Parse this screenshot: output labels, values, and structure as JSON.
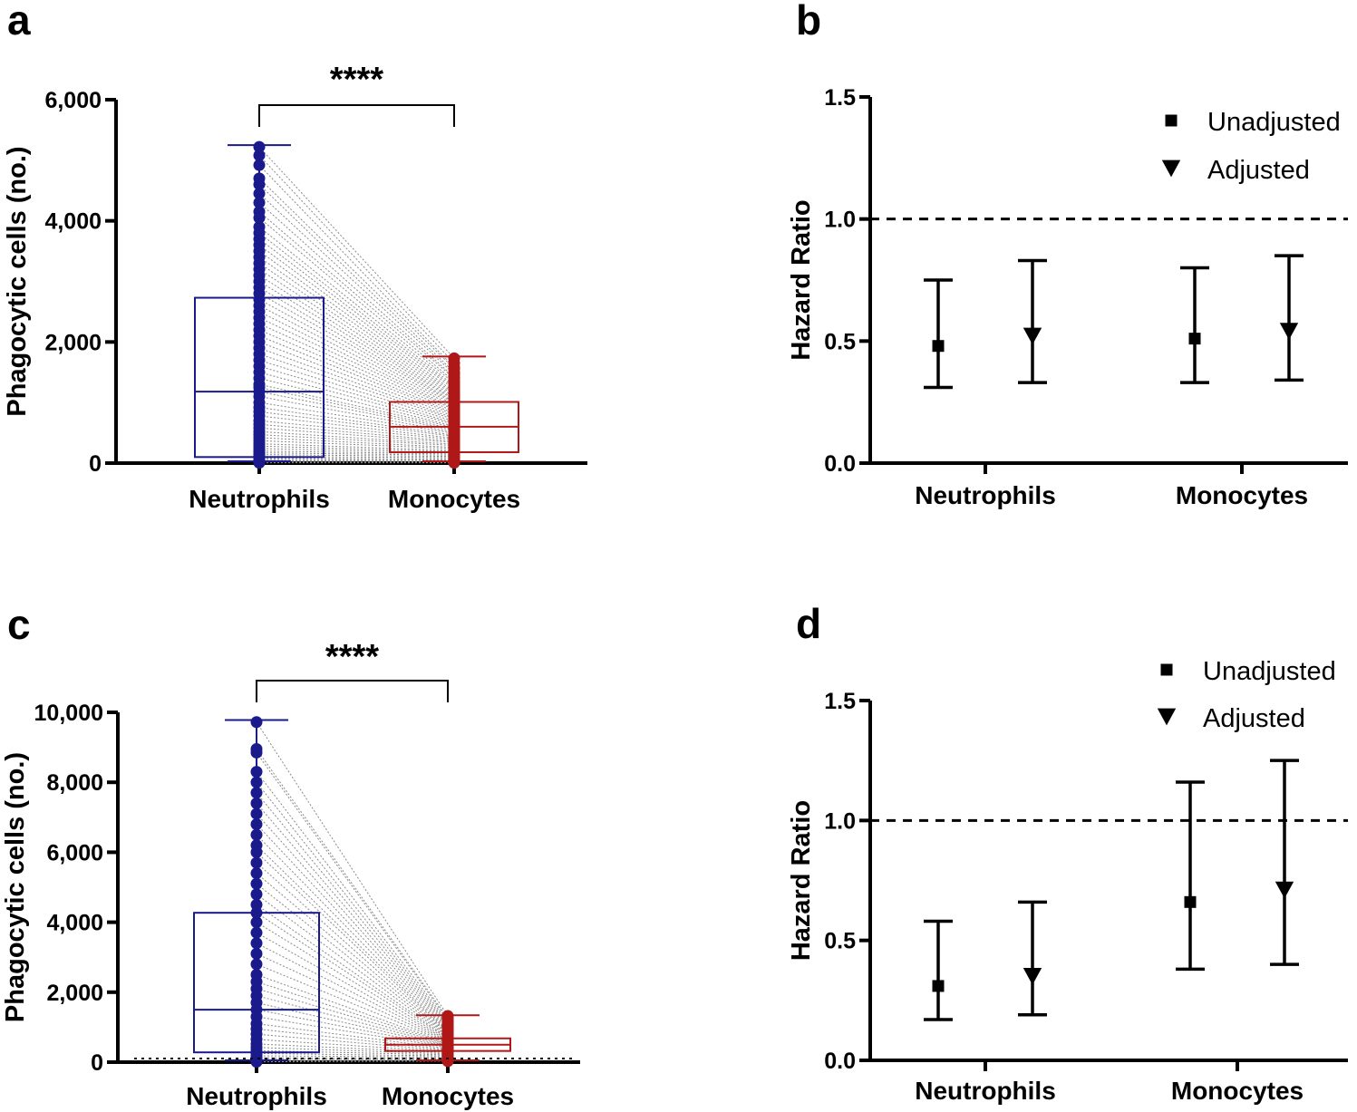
{
  "colors": {
    "neutrophils": "#1a1a8c",
    "monocytes": "#b01818",
    "pair_line": "#8a8a8a",
    "axis": "#000000"
  },
  "chart_data": [
    {
      "panel": "a",
      "type": "box",
      "title": "",
      "xlabel": "",
      "ylabel": "Phagocytic cells (no.)",
      "ylim": [
        0,
        6000
      ],
      "yticks": [
        0,
        2000,
        4000,
        6000
      ],
      "ytick_labels": [
        "0",
        "2,000",
        "4,000",
        "6,000"
      ],
      "categories": [
        "Neutrophils",
        "Monocytes"
      ],
      "boxes": [
        {
          "name": "Neutrophils",
          "min": 0,
          "q1": 100,
          "median": 1180,
          "q3": 2730,
          "max": 5250
        },
        {
          "name": "Monocytes",
          "min": 0,
          "q1": 180,
          "median": 600,
          "q3": 1010,
          "max": 1760
        }
      ],
      "paired_points": [
        [
          5220,
          1730
        ],
        [
          5080,
          1650
        ],
        [
          4920,
          1580
        ],
        [
          4700,
          1560
        ],
        [
          4600,
          1500
        ],
        [
          4450,
          1470
        ],
        [
          4300,
          1420
        ],
        [
          4150,
          1400
        ],
        [
          4050,
          1350
        ],
        [
          3900,
          1320
        ],
        [
          3800,
          1280
        ],
        [
          3700,
          1250
        ],
        [
          3600,
          1220
        ],
        [
          3500,
          1180
        ],
        [
          3400,
          1150
        ],
        [
          3300,
          1120
        ],
        [
          3200,
          1090
        ],
        [
          3100,
          1060
        ],
        [
          3000,
          1040
        ],
        [
          2900,
          1010
        ],
        [
          2800,
          990
        ],
        [
          2700,
          960
        ],
        [
          2600,
          930
        ],
        [
          2500,
          900
        ],
        [
          2400,
          880
        ],
        [
          2300,
          850
        ],
        [
          2200,
          820
        ],
        [
          2100,
          800
        ],
        [
          2000,
          770
        ],
        [
          1900,
          740
        ],
        [
          1800,
          720
        ],
        [
          1700,
          690
        ],
        [
          1600,
          660
        ],
        [
          1500,
          640
        ],
        [
          1400,
          610
        ],
        [
          1300,
          590
        ],
        [
          1250,
          560
        ],
        [
          1180,
          540
        ],
        [
          1100,
          510
        ],
        [
          1000,
          490
        ],
        [
          920,
          460
        ],
        [
          850,
          440
        ],
        [
          780,
          410
        ],
        [
          700,
          390
        ],
        [
          640,
          360
        ],
        [
          580,
          340
        ],
        [
          520,
          310
        ],
        [
          470,
          290
        ],
        [
          420,
          260
        ],
        [
          370,
          240
        ],
        [
          320,
          210
        ],
        [
          280,
          190
        ],
        [
          240,
          170
        ],
        [
          200,
          150
        ],
        [
          170,
          130
        ],
        [
          140,
          110
        ],
        [
          110,
          90
        ],
        [
          80,
          70
        ],
        [
          60,
          50
        ],
        [
          40,
          30
        ],
        [
          20,
          15
        ],
        [
          5,
          5
        ]
      ],
      "significance": "****"
    },
    {
      "panel": "b",
      "type": "scatter",
      "title": "",
      "xlabel": "",
      "ylabel": "Hazard Ratio",
      "ylim": [
        0,
        1.5
      ],
      "yticks": [
        0.0,
        0.5,
        1.0,
        1.5
      ],
      "ytick_labels": [
        "0.0",
        "0.5",
        "1.0",
        "1.5"
      ],
      "categories": [
        "Neutrophils",
        "Monocytes"
      ],
      "reference_line": 1.0,
      "legend": [
        "Unadjusted",
        "Adjusted"
      ],
      "legend_position": "top-right",
      "series": [
        {
          "name": "Unadjusted",
          "marker": "square",
          "values": [
            0.48,
            0.51
          ],
          "lower": [
            0.31,
            0.33
          ],
          "upper": [
            0.75,
            0.8
          ]
        },
        {
          "name": "Adjusted",
          "marker": "triangle-down",
          "values": [
            0.52,
            0.54
          ],
          "lower": [
            0.33,
            0.34
          ],
          "upper": [
            0.83,
            0.85
          ]
        }
      ]
    },
    {
      "panel": "c",
      "type": "box",
      "title": "",
      "xlabel": "",
      "ylabel": "Phagocytic cells (no.)",
      "ylim": [
        0,
        10000
      ],
      "yticks": [
        0,
        2000,
        4000,
        6000,
        8000,
        10000
      ],
      "ytick_labels": [
        "0",
        "2,000",
        "4,000",
        "6,000",
        "8,000",
        "10,000"
      ],
      "categories": [
        "Neutrophils",
        "Monocytes"
      ],
      "boxes": [
        {
          "name": "Neutrophils",
          "min": 0,
          "q1": 280,
          "median": 1500,
          "q3": 4270,
          "max": 9780
        },
        {
          "name": "Monocytes",
          "min": 0,
          "q1": 320,
          "median": 500,
          "q3": 680,
          "max": 1340
        }
      ],
      "paired_points": [
        [
          9720,
          1320
        ],
        [
          8950,
          1250
        ],
        [
          8850,
          1200
        ],
        [
          8300,
          1150
        ],
        [
          8000,
          1100
        ],
        [
          7700,
          1060
        ],
        [
          7400,
          1020
        ],
        [
          7100,
          980
        ],
        [
          6800,
          940
        ],
        [
          6500,
          900
        ],
        [
          6200,
          870
        ],
        [
          6000,
          840
        ],
        [
          5700,
          810
        ],
        [
          5400,
          780
        ],
        [
          5100,
          750
        ],
        [
          4800,
          720
        ],
        [
          4500,
          690
        ],
        [
          4270,
          670
        ],
        [
          4000,
          640
        ],
        [
          3700,
          620
        ],
        [
          3400,
          600
        ],
        [
          3100,
          580
        ],
        [
          2800,
          560
        ],
        [
          2500,
          540
        ],
        [
          2300,
          520
        ],
        [
          2100,
          500
        ],
        [
          1900,
          480
        ],
        [
          1700,
          460
        ],
        [
          1500,
          440
        ],
        [
          1300,
          420
        ],
        [
          1100,
          390
        ],
        [
          950,
          360
        ],
        [
          800,
          330
        ],
        [
          650,
          300
        ],
        [
          520,
          270
        ],
        [
          420,
          240
        ],
        [
          330,
          210
        ],
        [
          250,
          180
        ],
        [
          180,
          150
        ],
        [
          120,
          120
        ],
        [
          80,
          90
        ],
        [
          40,
          60
        ],
        [
          10,
          30
        ]
      ],
      "significance": "****"
    },
    {
      "panel": "d",
      "type": "scatter",
      "title": "",
      "xlabel": "",
      "ylabel": "Hazard Ratio",
      "ylim": [
        0,
        1.5
      ],
      "yticks": [
        0.0,
        0.5,
        1.0,
        1.5
      ],
      "ytick_labels": [
        "0.0",
        "0.5",
        "1.0",
        "1.5"
      ],
      "categories": [
        "Neutrophils",
        "Monocytes"
      ],
      "reference_line": 1.0,
      "legend": [
        "Unadjusted",
        "Adjusted"
      ],
      "legend_position": "top-right",
      "series": [
        {
          "name": "Unadjusted",
          "marker": "square",
          "values": [
            0.31,
            0.66
          ],
          "lower": [
            0.17,
            0.38
          ],
          "upper": [
            0.58,
            1.16
          ]
        },
        {
          "name": "Adjusted",
          "marker": "triangle-down",
          "values": [
            0.35,
            0.71
          ],
          "lower": [
            0.19,
            0.4
          ],
          "upper": [
            0.66,
            1.25
          ]
        }
      ]
    }
  ]
}
